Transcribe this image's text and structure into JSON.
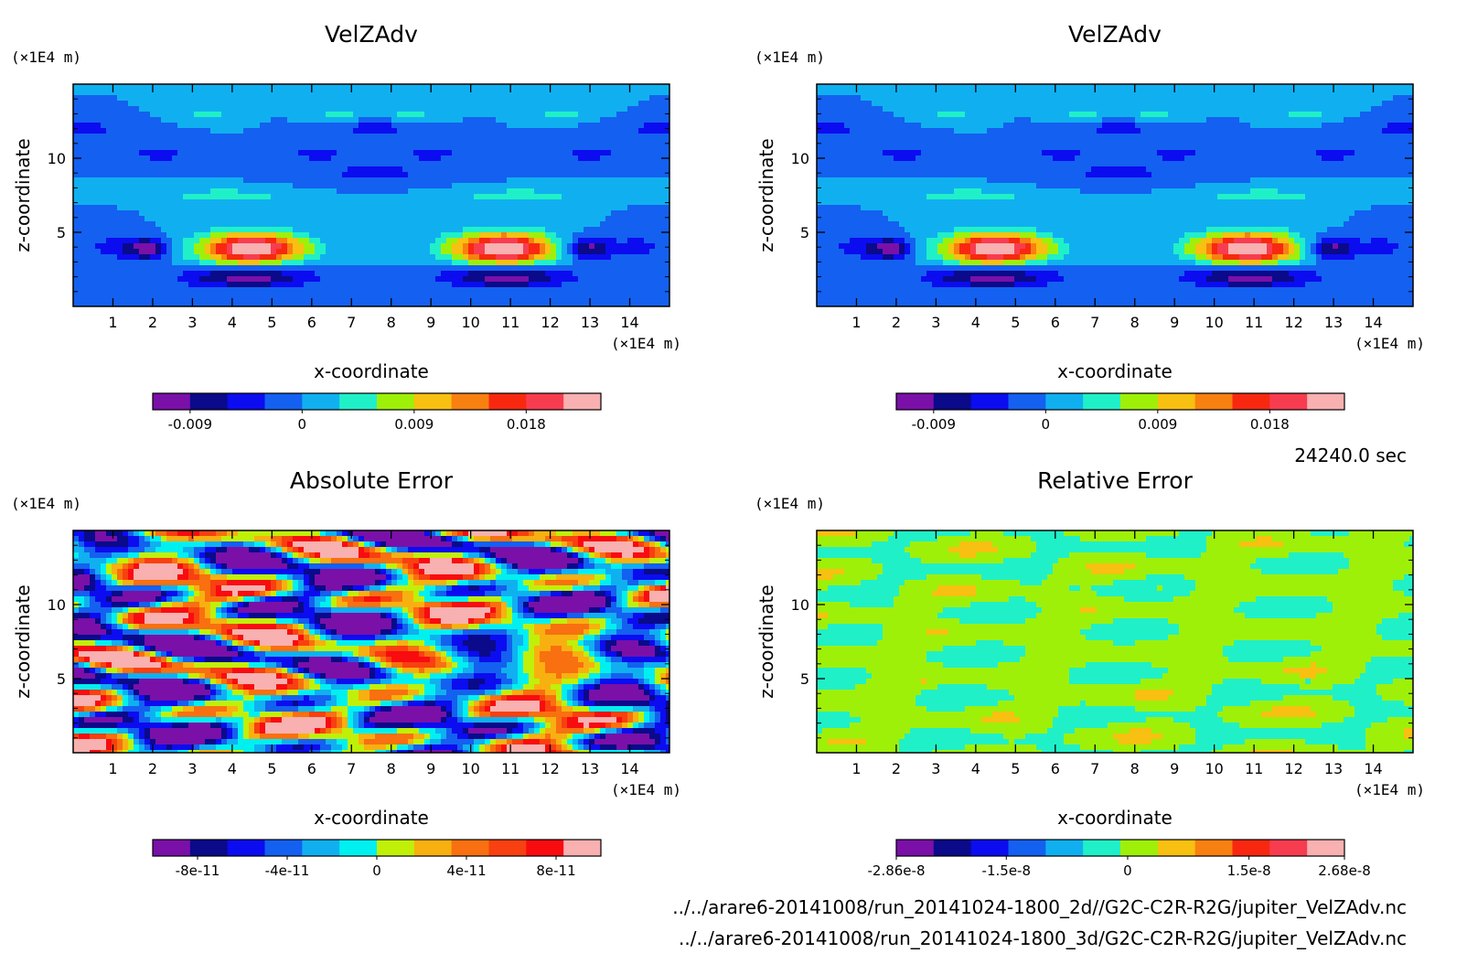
{
  "time_label": "24240.0 sec",
  "files": [
    "../../arare6-20141008/run_20141024-1800_2d//G2C-C2R-R2G/jupiter_VelZAdv.nc",
    "../../arare6-20141008/run_20141024-1800_3d/G2C-C2R-R2G/jupiter_VelZAdv.nc"
  ],
  "chart_data": [
    {
      "type": "heatmap",
      "title": "VelZAdv",
      "xlabel": "x-coordinate",
      "ylabel": "z-coordinate",
      "x_unit": "(×1E4 m)",
      "y_unit": "(×1E4 m)",
      "xlim": [
        0,
        15
      ],
      "ylim": [
        0,
        15
      ],
      "xticks": [
        1,
        2,
        3,
        4,
        5,
        6,
        7,
        8,
        9,
        10,
        11,
        12,
        13,
        14
      ],
      "yticks": [
        5,
        10
      ],
      "colorbar": {
        "colors": [
          "#7a10a8",
          "#0a0a8a",
          "#0c0cf0",
          "#1460f0",
          "#10b0f0",
          "#20f0c8",
          "#9ef008",
          "#f8c010",
          "#f88010",
          "#f82810",
          "#f83c50",
          "#f8b0b0"
        ],
        "tick_labels": [
          "-0.009",
          "0",
          "0.009",
          "0.018"
        ],
        "tick_values": [
          -0.009,
          0,
          0.009,
          0.018
        ],
        "vmin": -0.012,
        "vmax": 0.024
      },
      "field": "velzadv"
    },
    {
      "type": "heatmap",
      "title": "VelZAdv",
      "xlabel": "x-coordinate",
      "ylabel": "z-coordinate",
      "x_unit": "(×1E4 m)",
      "y_unit": "(×1E4 m)",
      "xlim": [
        0,
        15
      ],
      "ylim": [
        0,
        15
      ],
      "xticks": [
        1,
        2,
        3,
        4,
        5,
        6,
        7,
        8,
        9,
        10,
        11,
        12,
        13,
        14
      ],
      "yticks": [
        5,
        10
      ],
      "colorbar": {
        "colors": [
          "#7a10a8",
          "#0a0a8a",
          "#0c0cf0",
          "#1460f0",
          "#10b0f0",
          "#20f0c8",
          "#9ef008",
          "#f8c010",
          "#f88010",
          "#f82810",
          "#f83c50",
          "#f8b0b0"
        ],
        "tick_labels": [
          "-0.009",
          "0",
          "0.009",
          "0.018"
        ],
        "tick_values": [
          -0.009,
          0,
          0.009,
          0.018
        ],
        "vmin": -0.012,
        "vmax": 0.024
      },
      "field": "velzadv"
    },
    {
      "type": "heatmap",
      "title": "Absolute Error",
      "xlabel": "x-coordinate",
      "ylabel": "z-coordinate",
      "x_unit": "(×1E4 m)",
      "y_unit": "(×1E4 m)",
      "xlim": [
        0,
        15
      ],
      "ylim": [
        0,
        15
      ],
      "xticks": [
        1,
        2,
        3,
        4,
        5,
        6,
        7,
        8,
        9,
        10,
        11,
        12,
        13,
        14
      ],
      "yticks": [
        5,
        10
      ],
      "colorbar": {
        "colors": [
          "#7a10a8",
          "#0a0a8a",
          "#0c0cf0",
          "#1460f0",
          "#10b0f0",
          "#00f0f0",
          "#c0f008",
          "#f8b010",
          "#f87010",
          "#f84010",
          "#f80c10",
          "#f8b0b0"
        ],
        "tick_labels": [
          "-8e-11",
          "-4e-11",
          "0",
          "4e-11",
          "8e-11"
        ],
        "tick_values": [
          -8e-11,
          -4e-11,
          0,
          4e-11,
          8e-11
        ],
        "vmin": -1e-10,
        "vmax": 1e-10
      },
      "field": "abserr"
    },
    {
      "type": "heatmap",
      "title": "Relative Error",
      "xlabel": "x-coordinate",
      "ylabel": "z-coordinate",
      "x_unit": "(×1E4 m)",
      "y_unit": "(×1E4 m)",
      "xlim": [
        0,
        15
      ],
      "ylim": [
        0,
        15
      ],
      "xticks": [
        1,
        2,
        3,
        4,
        5,
        6,
        7,
        8,
        9,
        10,
        11,
        12,
        13,
        14
      ],
      "yticks": [
        5,
        10
      ],
      "colorbar": {
        "colors": [
          "#7a10a8",
          "#0a0a8a",
          "#0c0cf0",
          "#1460f0",
          "#10b0f0",
          "#20f0c8",
          "#9ef008",
          "#f8c010",
          "#f88010",
          "#f82810",
          "#f83c50",
          "#f8b0b0"
        ],
        "tick_labels": [
          "-2.86e-8",
          "-1.5e-8",
          "0",
          "1.5e-8",
          "2.68e-8"
        ],
        "tick_values": [
          -2.86e-08,
          -1.5e-08,
          0,
          1.5e-08,
          2.68e-08
        ],
        "vmin": -2.86e-08,
        "vmax": 2.68e-08
      },
      "field": "relerr"
    }
  ]
}
